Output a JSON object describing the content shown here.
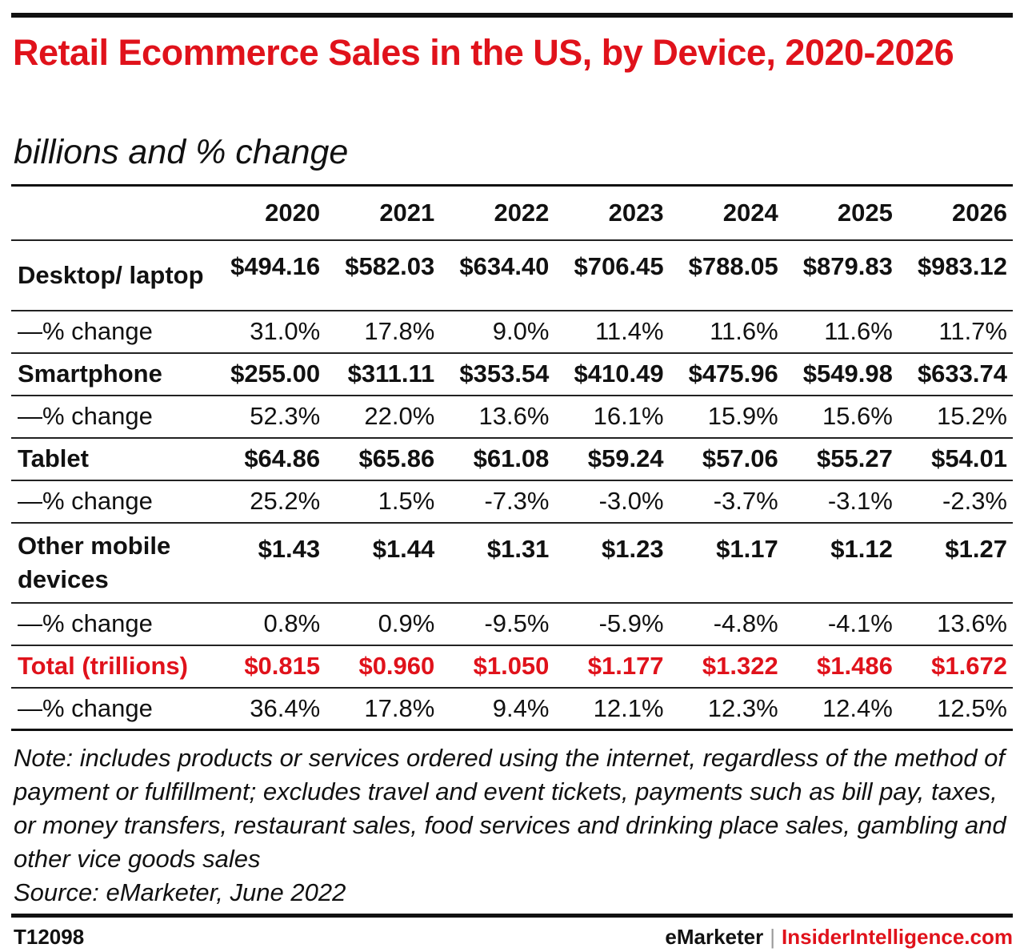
{
  "title": "Retail Ecommerce Sales in the US, by Device, 2020-2026",
  "subtitle": "billions and % change",
  "chart_data": {
    "type": "table",
    "columns": [
      "2020",
      "2021",
      "2022",
      "2023",
      "2024",
      "2025",
      "2026"
    ],
    "rows": [
      {
        "label": "Desktop/ laptop",
        "kind": "value",
        "values": [
          "$494.16",
          "$582.03",
          "$634.40",
          "$706.45",
          "$788.05",
          "$879.83",
          "$983.12"
        ]
      },
      {
        "label": "—% change",
        "kind": "pct",
        "values": [
          "31.0%",
          "17.8%",
          "9.0%",
          "11.4%",
          "11.6%",
          "11.6%",
          "11.7%"
        ]
      },
      {
        "label": "Smartphone",
        "kind": "value",
        "values": [
          "$255.00",
          "$311.11",
          "$353.54",
          "$410.49",
          "$475.96",
          "$549.98",
          "$633.74"
        ]
      },
      {
        "label": "—% change",
        "kind": "pct",
        "values": [
          "52.3%",
          "22.0%",
          "13.6%",
          "16.1%",
          "15.9%",
          "15.6%",
          "15.2%"
        ]
      },
      {
        "label": "Tablet",
        "kind": "value",
        "values": [
          "$64.86",
          "$65.86",
          "$61.08",
          "$59.24",
          "$57.06",
          "$55.27",
          "$54.01"
        ]
      },
      {
        "label": "—% change",
        "kind": "pct",
        "values": [
          "25.2%",
          "1.5%",
          "-7.3%",
          "-3.0%",
          "-3.7%",
          "-3.1%",
          "-2.3%"
        ]
      },
      {
        "label": "Other mobile devices",
        "kind": "value",
        "values": [
          "$1.43",
          "$1.44",
          "$1.31",
          "$1.23",
          "$1.17",
          "$1.12",
          "$1.27"
        ]
      },
      {
        "label": "—% change",
        "kind": "pct",
        "values": [
          "0.8%",
          "0.9%",
          "-9.5%",
          "-5.9%",
          "-4.8%",
          "-4.1%",
          "13.6%"
        ]
      },
      {
        "label": "Total (trillions)",
        "kind": "total",
        "values": [
          "$0.815",
          "$0.960",
          "$1.050",
          "$1.177",
          "$1.322",
          "$1.486",
          "$1.672"
        ]
      },
      {
        "label": "—% change",
        "kind": "pct",
        "values": [
          "36.4%",
          "17.8%",
          "9.4%",
          "12.1%",
          "12.3%",
          "12.4%",
          "12.5%"
        ]
      }
    ]
  },
  "note": "Note: includes products or services ordered using the internet, regardless of the method of payment or fulfillment; excludes travel and event tickets, payments such as bill pay, taxes, or money transfers, restaurant sales, food services and drinking place sales, gambling and other vice goods sales",
  "source": "Source: eMarketer, June 2022",
  "footer": {
    "id": "T12098",
    "brand_left": "eMarketer",
    "separator": "|",
    "brand_right": "InsiderIntelligence.com"
  },
  "colors": {
    "accent": "#e0121b",
    "text": "#111111",
    "rule": "#111111"
  }
}
